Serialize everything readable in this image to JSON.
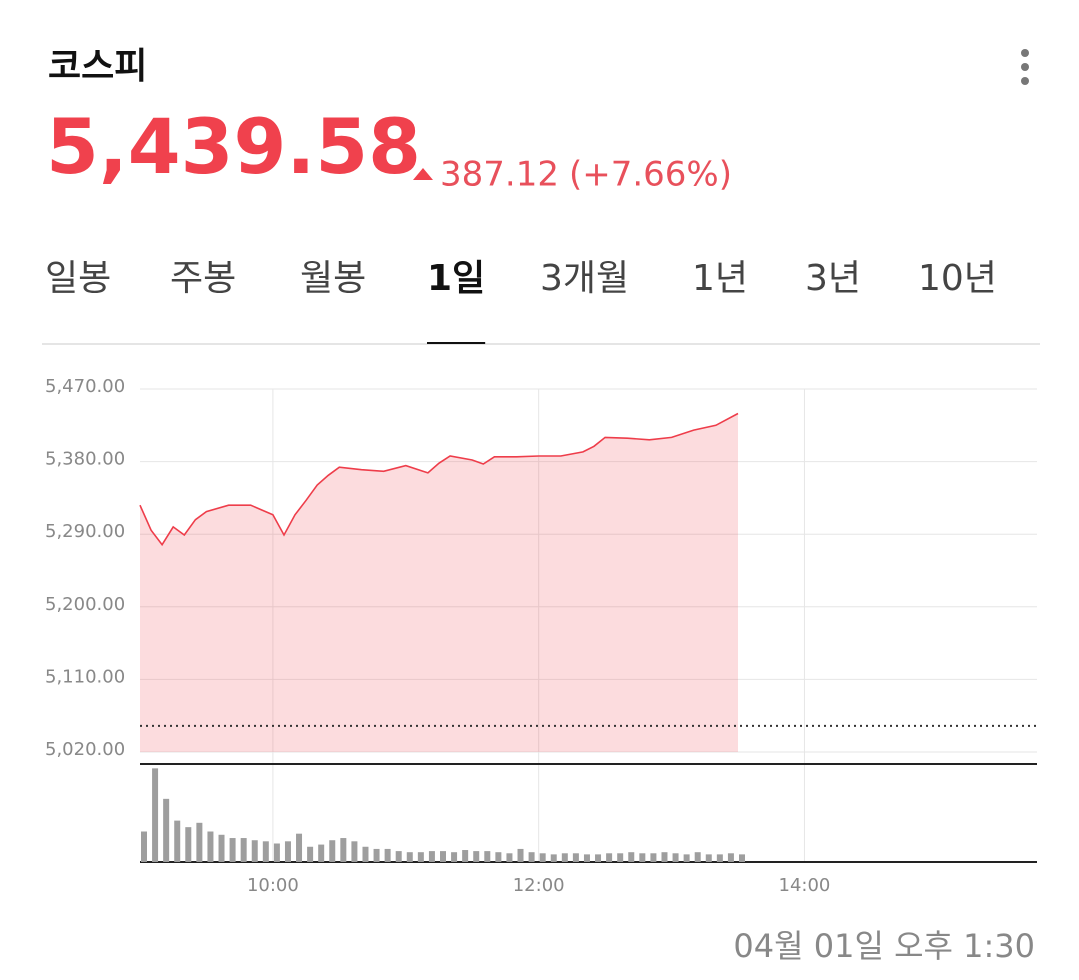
{
  "header": {
    "title": "코스피",
    "price": "5,439.58",
    "change": "387.12",
    "change_rate": "(+7.66%)"
  },
  "tabs": [
    "일봉",
    "주봉",
    "월봉",
    "1일",
    "3개월",
    "1년",
    "3년",
    "10년"
  ],
  "active_tab": 3,
  "timestamp": "04월 01일 오후 1:30",
  "chart_data": [
    {
      "type": "area",
      "color": "#ee3d4a",
      "x": [
        "09:00",
        "09:05",
        "09:10",
        "09:15",
        "09:20",
        "09:25",
        "09:30",
        "09:40",
        "09:50",
        "09:55",
        "10:00",
        "10:05",
        "10:10",
        "10:15",
        "10:20",
        "10:25",
        "10:30",
        "10:40",
        "10:50",
        "11:00",
        "11:10",
        "11:15",
        "11:20",
        "11:30",
        "11:35",
        "11:40",
        "11:50",
        "12:00",
        "12:10",
        "12:20",
        "12:25",
        "12:30",
        "12:40",
        "12:50",
        "13:00",
        "13:10",
        "13:20",
        "13:30"
      ],
      "values": [
        5326,
        5295,
        5277,
        5299,
        5289,
        5308,
        5318,
        5326,
        5326,
        5320,
        5314,
        5289,
        5314,
        5332,
        5351,
        5363,
        5373,
        5370,
        5368,
        5375,
        5366,
        5378,
        5387,
        5382,
        5377,
        5386,
        5386,
        5387,
        5387,
        5392,
        5399,
        5410,
        5409,
        5407,
        5410,
        5419,
        5425,
        5439.58
      ],
      "reference_line": 5052.46,
      "xlim": [
        "09:00",
        "15:45"
      ],
      "xticks": [
        "10:00",
        "12:00",
        "14:00"
      ],
      "ylim": [
        5020,
        5470
      ],
      "yticks": [
        {
          "value": 5020,
          "label": "5,020.00"
        },
        {
          "value": 5110,
          "label": "5,110.00"
        },
        {
          "value": 5200,
          "label": "5,200.00"
        },
        {
          "value": 5290,
          "label": "5,290.00"
        },
        {
          "value": 5380,
          "label": "5,380.00"
        },
        {
          "value": 5470,
          "label": "5,470.00"
        }
      ],
      "grid": true
    },
    {
      "type": "bar",
      "color": "#9e9e9e",
      "x": [
        "09:00",
        "09:05",
        "09:10",
        "09:15",
        "09:20",
        "09:25",
        "09:30",
        "09:35",
        "09:40",
        "09:45",
        "09:50",
        "09:55",
        "10:00",
        "10:05",
        "10:10",
        "10:15",
        "10:20",
        "10:25",
        "10:30",
        "10:35",
        "10:40",
        "10:45",
        "10:50",
        "10:55",
        "11:00",
        "11:05",
        "11:10",
        "11:15",
        "11:20",
        "11:25",
        "11:30",
        "11:35",
        "11:40",
        "11:45",
        "11:50",
        "11:55",
        "12:00",
        "12:05",
        "12:10",
        "12:15",
        "12:20",
        "12:25",
        "12:30",
        "12:35",
        "12:40",
        "12:45",
        "12:50",
        "12:55",
        "13:00",
        "13:05",
        "13:10",
        "13:15",
        "13:20",
        "13:25",
        "13:30"
      ],
      "values": [
        28,
        86,
        58,
        38,
        32,
        36,
        28,
        25,
        22,
        22,
        20,
        19,
        17,
        19,
        26,
        14,
        16,
        20,
        22,
        19,
        14,
        12,
        12,
        10,
        9,
        9,
        10,
        10,
        9,
        11,
        10,
        10,
        9,
        8,
        12,
        9,
        8,
        7,
        8,
        8,
        7,
        7,
        8,
        8,
        9,
        8,
        8,
        9,
        8,
        7,
        9,
        7,
        7,
        8,
        7
      ],
      "ylim": [
        0,
        90
      ]
    }
  ]
}
